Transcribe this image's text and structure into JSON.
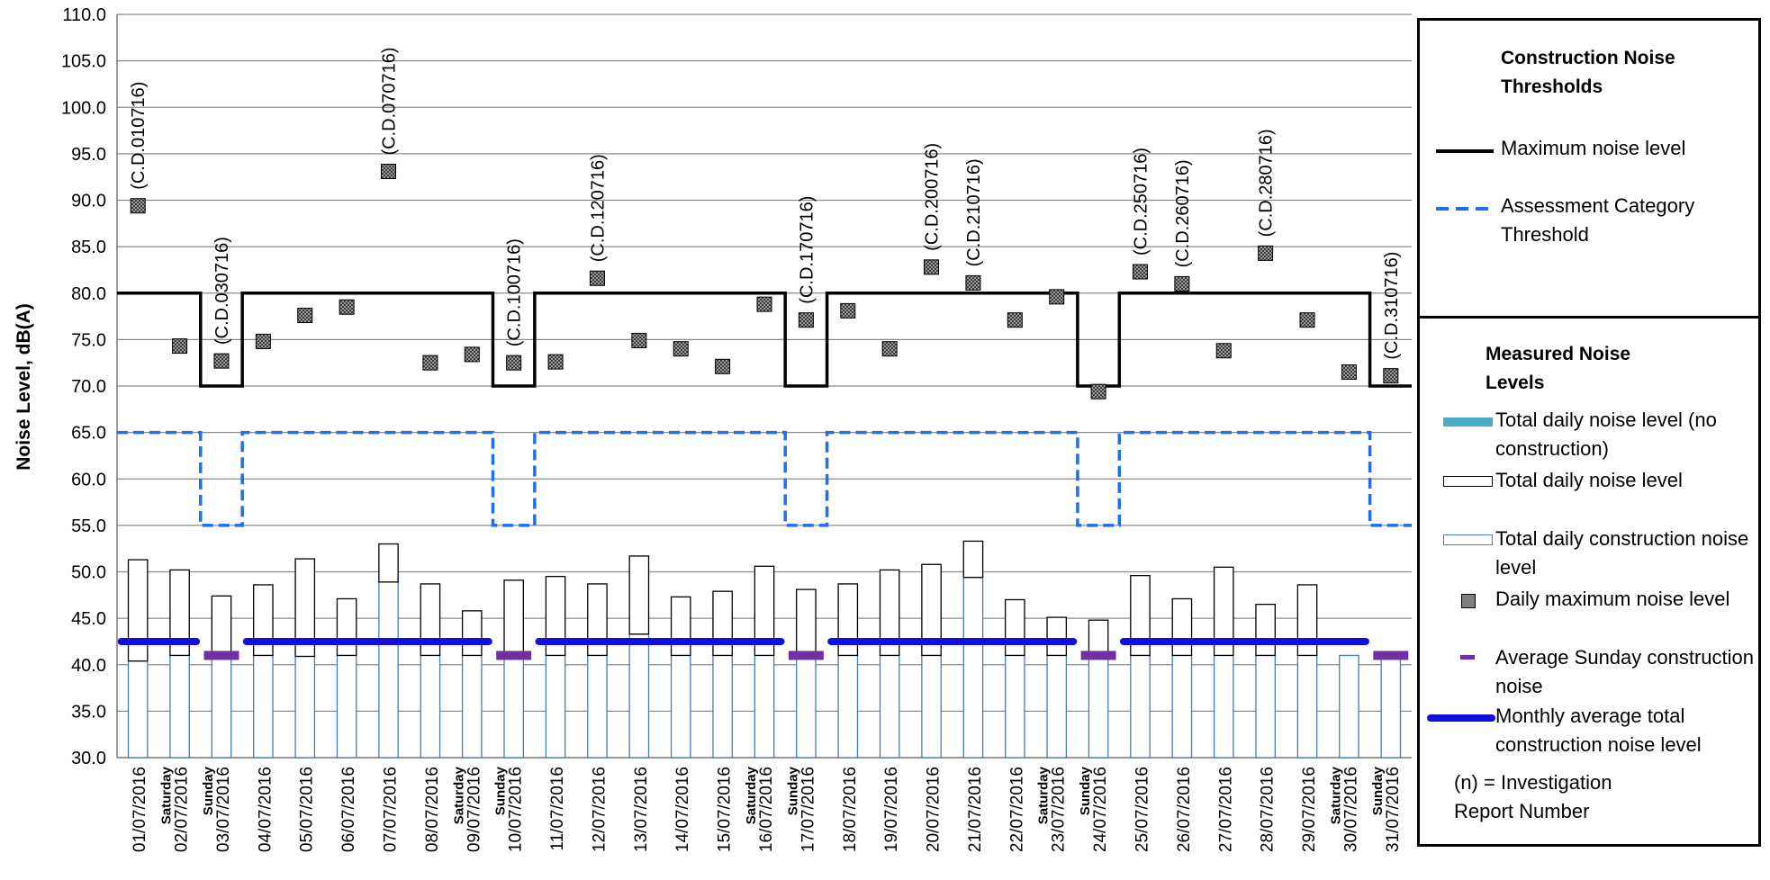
{
  "chart_data": {
    "type": "bar",
    "ylabel": "Noise Level, dB(A)",
    "ylim": [
      30,
      110
    ],
    "yticks": [
      "30.0",
      "35.0",
      "40.0",
      "45.0",
      "50.0",
      "55.0",
      "60.0",
      "65.0",
      "70.0",
      "75.0",
      "80.0",
      "85.0",
      "90.0",
      "95.0",
      "100.0",
      "105.0",
      "110.0"
    ],
    "grid": true,
    "legend_placement": "right",
    "categories": [
      "01/07/2016",
      "02/07/2016",
      "03/07/2016",
      "04/07/2016",
      "05/07/2016",
      "06/07/2016",
      "07/07/2016",
      "08/07/2016",
      "09/07/2016",
      "10/07/2016",
      "11/07/2016",
      "12/07/2016",
      "13/07/2016",
      "14/07/2016",
      "15/07/2016",
      "16/07/2016",
      "17/07/2016",
      "18/07/2016",
      "19/07/2016",
      "20/07/2016",
      "21/07/2016",
      "22/07/2016",
      "23/07/2016",
      "24/07/2016",
      "25/07/2016",
      "26/07/2016",
      "27/07/2016",
      "28/07/2016",
      "29/07/2016",
      "30/07/2016",
      "31/07/2016"
    ],
    "day_labels": [
      "",
      "Saturday",
      "Sunday",
      "",
      "",
      "",
      "",
      "",
      "Saturday",
      "Sunday",
      "",
      "",
      "",
      "",
      "",
      "Saturday",
      "Sunday",
      "",
      "",
      "",
      "",
      "",
      "Saturday",
      "Sunday",
      "",
      "",
      "",
      "",
      "",
      "Saturday",
      "Sunday"
    ],
    "series": [
      {
        "name": "Total daily noise level",
        "values": [
          51.3,
          50.2,
          47.4,
          48.6,
          51.4,
          47.1,
          53.0,
          48.7,
          45.8,
          49.1,
          49.5,
          48.7,
          51.7,
          47.3,
          47.9,
          50.6,
          48.1,
          48.7,
          50.2,
          50.8,
          53.3,
          47.0,
          45.1,
          44.8,
          49.6,
          47.1,
          50.5,
          46.5,
          48.6,
          null,
          null
        ]
      },
      {
        "name": "Total daily construction noise level",
        "values": [
          40.4,
          41.0,
          41.0,
          41.0,
          40.9,
          41.0,
          48.9,
          41.0,
          41.0,
          40.8,
          41.0,
          41.0,
          43.3,
          41.0,
          41.0,
          41.0,
          41.0,
          41.0,
          41.0,
          41.0,
          49.4,
          41.0,
          41.0,
          41.0,
          41.0,
          41.0,
          41.0,
          41.0,
          41.0,
          41.0,
          41.0
        ]
      },
      {
        "name": "Daily maximum noise level",
        "values": [
          89.4,
          74.3,
          72.7,
          74.8,
          77.6,
          78.5,
          93.1,
          72.5,
          73.4,
          72.5,
          72.6,
          81.6,
          74.9,
          74.0,
          72.1,
          78.8,
          77.1,
          78.1,
          74.0,
          82.8,
          81.1,
          77.1,
          79.6,
          69.4,
          82.3,
          81.0,
          73.8,
          84.3,
          77.1,
          71.5,
          71.1
        ]
      },
      {
        "name": "Maximum noise level",
        "values": [
          80,
          80,
          70,
          80,
          80,
          80,
          80,
          80,
          80,
          70,
          80,
          80,
          80,
          80,
          80,
          80,
          70,
          80,
          80,
          80,
          80,
          80,
          80,
          70,
          80,
          80,
          80,
          80,
          80,
          80,
          70
        ]
      },
      {
        "name": "Assessment Category Threshold",
        "values": [
          65,
          65,
          55,
          65,
          65,
          65,
          65,
          65,
          65,
          55,
          65,
          65,
          65,
          65,
          65,
          65,
          55,
          65,
          65,
          65,
          65,
          65,
          65,
          55,
          65,
          65,
          65,
          65,
          65,
          65,
          55
        ]
      },
      {
        "name": "Average Sunday construction noise",
        "values": [
          null,
          null,
          41.0,
          null,
          null,
          null,
          null,
          null,
          null,
          41.0,
          null,
          null,
          null,
          null,
          null,
          null,
          41.0,
          null,
          null,
          null,
          null,
          null,
          null,
          41.0,
          null,
          null,
          null,
          null,
          null,
          null,
          41.0
        ]
      },
      {
        "name": "Monthly average total construction noise level",
        "segments": [
          [
            0,
            1,
            42.5
          ],
          [
            3,
            8,
            42.5
          ],
          [
            10,
            15,
            42.5
          ],
          [
            17,
            22,
            42.5
          ],
          [
            24,
            29,
            42.5
          ]
        ]
      }
    ],
    "annotations": [
      {
        "index": 0,
        "text": "(C.D.010716)"
      },
      {
        "index": 2,
        "text": "(C.D.030716)"
      },
      {
        "index": 6,
        "text": "(C.D.070716)"
      },
      {
        "index": 9,
        "text": "(C.D.100716)"
      },
      {
        "index": 11,
        "text": "(C.D.120716)"
      },
      {
        "index": 16,
        "text": "(C.D.170716)"
      },
      {
        "index": 19,
        "text": "(C.D.200716)"
      },
      {
        "index": 20,
        "text": "(C.D.210716)"
      },
      {
        "index": 24,
        "text": "(C.D.250716)"
      },
      {
        "index": 25,
        "text": "(C.D.260716)"
      },
      {
        "index": 27,
        "text": "(C.D.280716)"
      },
      {
        "index": 30,
        "text": "(C.D.310716)"
      }
    ]
  },
  "legend_thresholds": {
    "title": "Construction Noise Thresholds",
    "max_label": "Maximum noise level",
    "acat_label": "Assessment Category Threshold"
  },
  "legend_measured": {
    "title": "Measured Noise Levels",
    "items": [
      "Total daily noise level (no construction)",
      "Total daily noise level",
      "Total daily construction noise level",
      "Daily maximum noise level",
      "Average Sunday construction noise",
      "Monthly average total construction noise level"
    ],
    "note": "(n) = Investigation Report Number"
  },
  "colors": {
    "construction_bar": "#4a7bc0",
    "no_construction": "#4bacc6",
    "threshold_dash": "#1f6ff0",
    "monthly_avg": "#1010d8",
    "sunday_avg": "#7030a0",
    "marker": "#7f7f7f"
  }
}
